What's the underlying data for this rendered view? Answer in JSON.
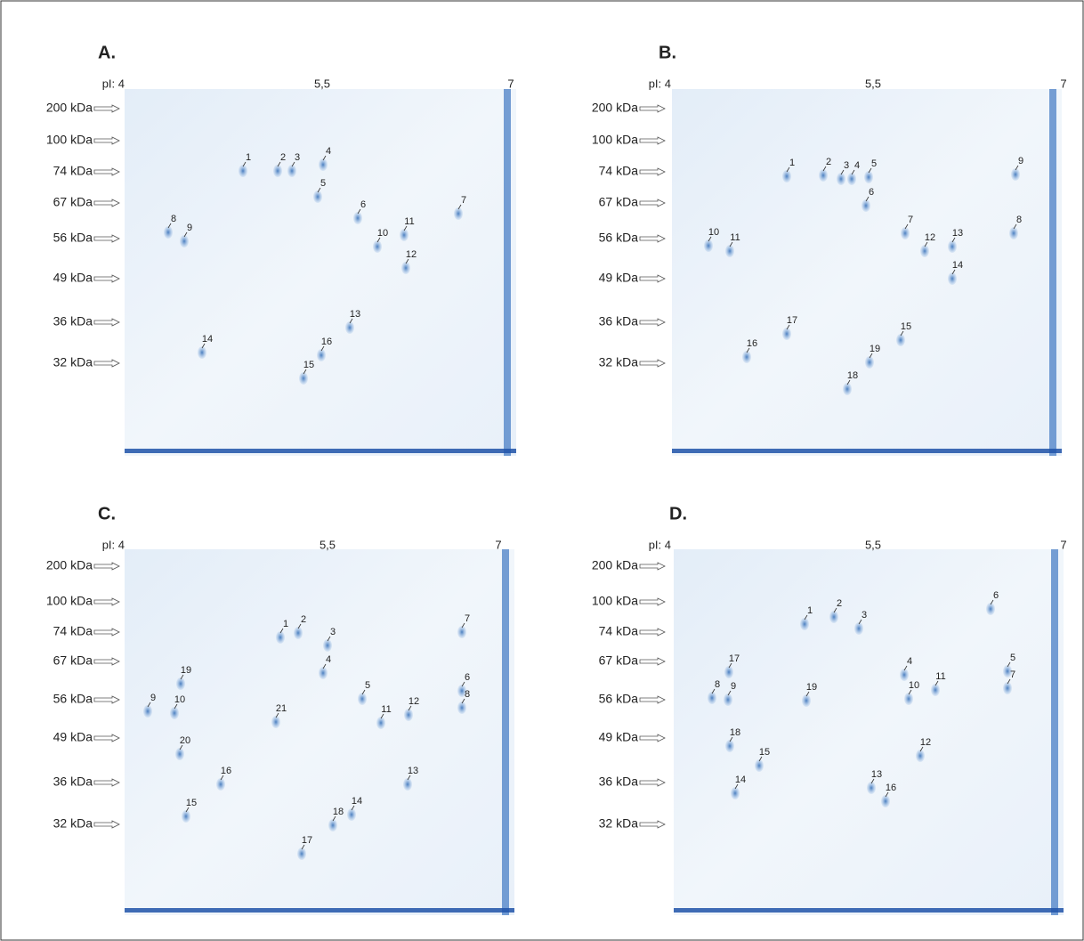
{
  "panels": [
    {
      "label": "A.",
      "pi_labels": [
        "pI: 4",
        "5,5",
        "7"
      ],
      "mw_labels": [
        "200 kDa",
        "100 kDa",
        "74 kDa",
        "67 kDa",
        "56 kDa",
        "49 kDa",
        "36 kDa",
        "32 kDa"
      ],
      "spots": [
        "1",
        "2",
        "3",
        "4",
        "5",
        "6",
        "7",
        "8",
        "9",
        "10",
        "11",
        "12",
        "13",
        "14",
        "15",
        "16"
      ]
    },
    {
      "label": "B.",
      "pi_labels": [
        "pI: 4",
        "5,5",
        "7"
      ],
      "mw_labels": [
        "200 kDa",
        "100 kDa",
        "74 kDa",
        "67 kDa",
        "56 kDa",
        "49 kDa",
        "36 kDa",
        "32 kDa"
      ],
      "spots": [
        "1",
        "2",
        "3",
        "4",
        "5",
        "6",
        "7",
        "8",
        "9",
        "10",
        "11",
        "12",
        "13",
        "14",
        "15",
        "16",
        "17",
        "18",
        "19"
      ]
    },
    {
      "label": "C.",
      "pi_labels": [
        "pI: 4",
        "5,5",
        "7"
      ],
      "mw_labels": [
        "200 kDa",
        "100 kDa",
        "74 kDa",
        "67 kDa",
        "56 kDa",
        "49 kDa",
        "36 kDa",
        "32 kDa"
      ],
      "spots": [
        "1",
        "2",
        "3",
        "4",
        "5",
        "6",
        "7",
        "8",
        "9",
        "10",
        "11",
        "12",
        "13",
        "14",
        "15",
        "16",
        "17",
        "18",
        "19",
        "20",
        "21"
      ]
    },
    {
      "label": "D.",
      "pi_labels": [
        "pI: 4",
        "5,5",
        "7"
      ],
      "mw_labels": [
        "200 kDa",
        "100 kDa",
        "74 kDa",
        "67 kDa",
        "56 kDa",
        "49 kDa",
        "36 kDa",
        "32 kDa"
      ],
      "spots": [
        "1",
        "2",
        "3",
        "4",
        "5",
        "6",
        "7",
        "8",
        "9",
        "10",
        "11",
        "12",
        "13",
        "14",
        "15",
        "16",
        "17",
        "18",
        "19"
      ]
    }
  ]
}
